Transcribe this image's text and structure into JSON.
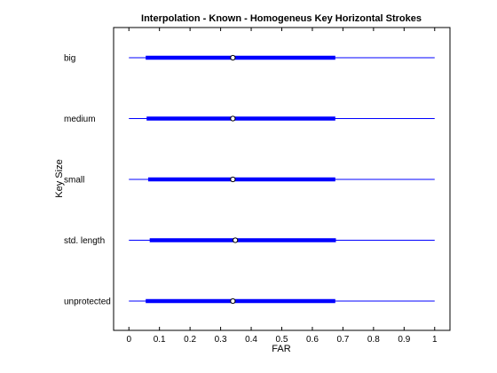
{
  "chart_data": {
    "type": "boxplot-horizontal",
    "title": "Interpolation - Known - Homogeneus Key Horizontal Strokes",
    "xlabel": "FAR",
    "ylabel": "Key Size",
    "xlim": [
      -0.05,
      1.05
    ],
    "xticks": [
      0,
      0.1,
      0.2,
      0.3,
      0.4,
      0.5,
      0.6,
      0.7,
      0.8,
      0.9,
      1
    ],
    "xtick_labels": [
      "0",
      "0.1",
      "0.2",
      "0.3",
      "0.4",
      "0.5",
      "0.6",
      "0.7",
      "0.8",
      "0.9",
      "1"
    ],
    "grid": false,
    "line_color": "#0000ff",
    "categories": [
      "big",
      "medium",
      "small",
      "std. length",
      "unprotected"
    ],
    "whisker_low": [
      0,
      0,
      0,
      0,
      0
    ],
    "q1": [
      0.055,
      0.058,
      0.063,
      0.068,
      0.055
    ],
    "median": [
      0.34,
      0.34,
      0.34,
      0.348,
      0.34
    ],
    "q3": [
      0.675,
      0.675,
      0.675,
      0.677,
      0.675
    ],
    "whisker_high": [
      1,
      1,
      1,
      1,
      1
    ]
  }
}
